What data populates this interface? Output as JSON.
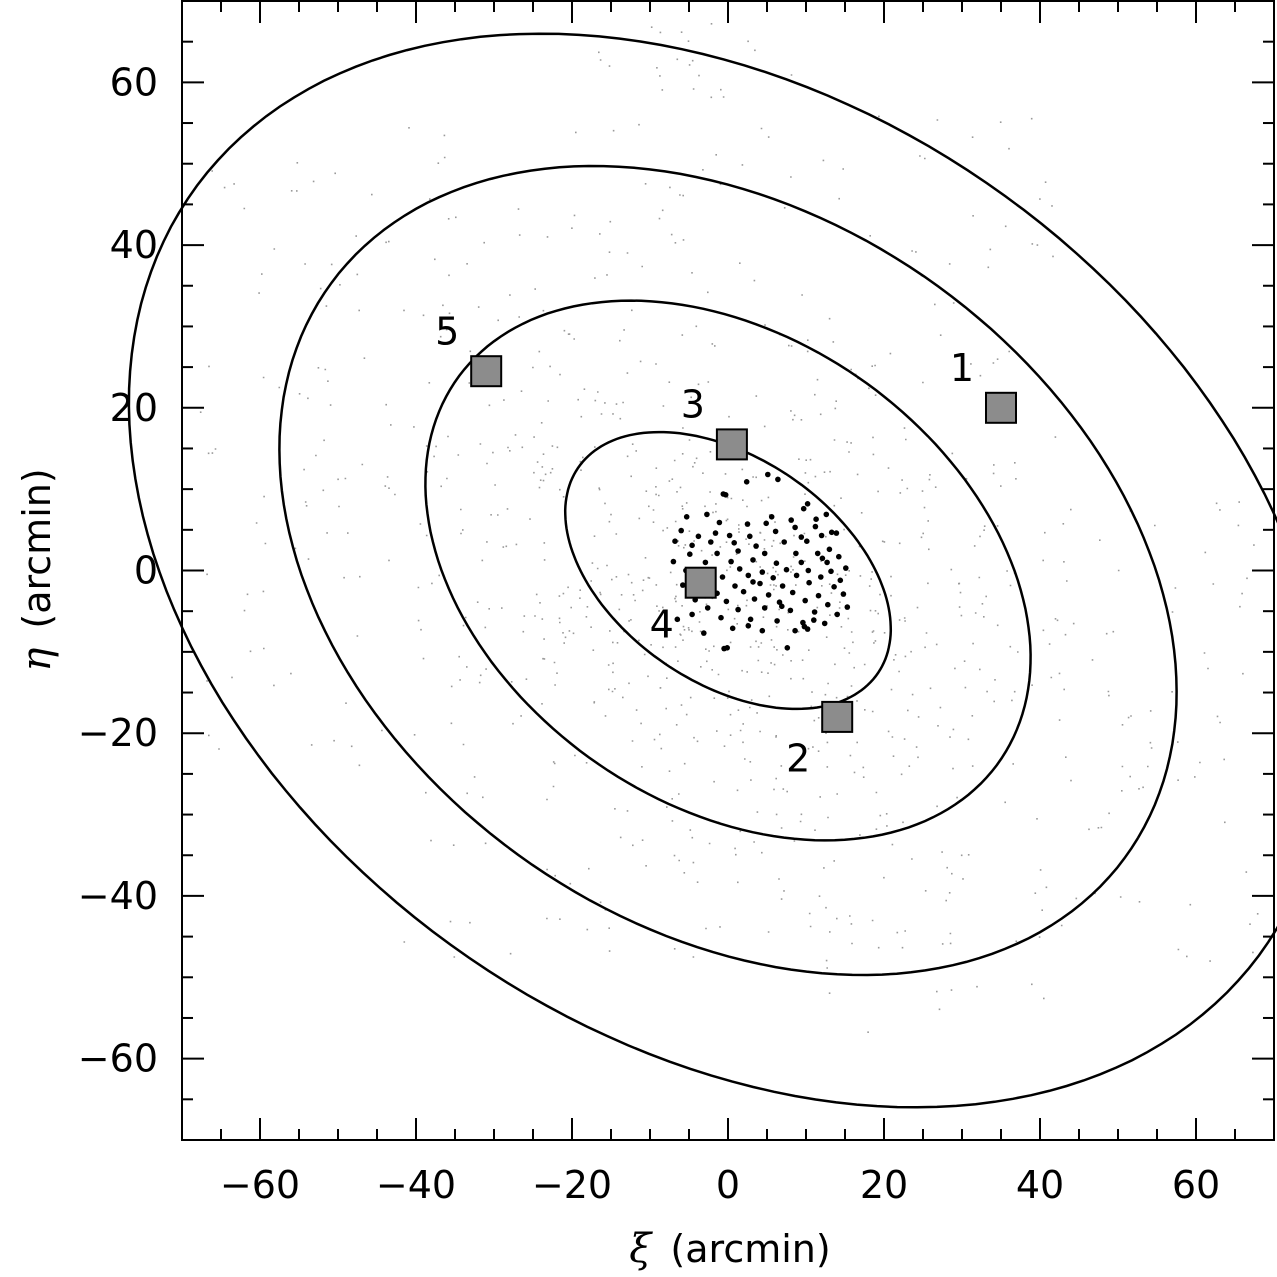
{
  "chart_data": {
    "type": "scatter",
    "title": "",
    "xlabel": {
      "symbol": "ξ",
      "text": "(arcmin)"
    },
    "ylabel": {
      "symbol": "η",
      "text": "(arcmin)"
    },
    "xlim": [
      -70,
      70
    ],
    "ylim": [
      -70,
      70
    ],
    "x_ticks": [
      -60,
      -40,
      -20,
      0,
      20,
      40,
      60
    ],
    "y_ticks": [
      -60,
      -40,
      -20,
      0,
      20,
      40,
      60
    ],
    "x_tick_labels": [
      "−60",
      "−40",
      "−20",
      "0",
      "20",
      "40",
      "60"
    ],
    "y_tick_labels": [
      "−60",
      "−40",
      "−20",
      "0",
      "20",
      "40",
      "60"
    ],
    "minor_tick_step": 5,
    "grid": false,
    "ellipses": [
      {
        "center": [
          0,
          0
        ],
        "semi_major": 23,
        "semi_minor": 14,
        "angle_deg": -32
      },
      {
        "center": [
          0,
          0
        ],
        "semi_major": 42,
        "semi_minor": 29,
        "angle_deg": -32
      },
      {
        "center": [
          0,
          0
        ],
        "semi_major": 62,
        "semi_minor": 44,
        "angle_deg": -32
      },
      {
        "center": [
          0,
          0
        ],
        "semi_major": 83,
        "semi_minor": 58,
        "angle_deg": -32
      }
    ],
    "fields": [
      {
        "label": "1",
        "x": 35,
        "y": 20,
        "label_x": 30,
        "label_y": 25
      },
      {
        "label": "2",
        "x": 14,
        "y": -18,
        "label_x": 9,
        "label_y": -23
      },
      {
        "label": "3",
        "x": 0.5,
        "y": 15.5,
        "label_x": -4.5,
        "label_y": 20.5
      },
      {
        "label": "4",
        "x": -3.5,
        "y": -1.5,
        "label_x": -8.5,
        "label_y": -6.5
      },
      {
        "label": "5",
        "x": -31,
        "y": 24.5,
        "label_x": -36,
        "label_y": 29.5
      }
    ],
    "stars": [
      [
        5.1,
        11.8
      ],
      [
        6.4,
        11.2
      ],
      [
        2.4,
        10.9
      ],
      [
        -0.3,
        9.3
      ],
      [
        10.2,
        8.2
      ],
      [
        12.6,
        6.9
      ],
      [
        9.7,
        7.6
      ],
      [
        8.1,
        6.2
      ],
      [
        11.3,
        6.3
      ],
      [
        13.9,
        4.6
      ],
      [
        -2.7,
        6.9
      ],
      [
        -5.3,
        6.6
      ],
      [
        -1.1,
        5.9
      ],
      [
        2.5,
        5.7
      ],
      [
        4.9,
        5.8
      ],
      [
        8.6,
        5.3
      ],
      [
        11.2,
        5.4
      ],
      [
        -6.0,
        4.9
      ],
      [
        -3.8,
        4.2
      ],
      [
        -1.6,
        4.6
      ],
      [
        0.2,
        4.3
      ],
      [
        2.8,
        4.2
      ],
      [
        6.1,
        4.8
      ],
      [
        9.4,
        4.1
      ],
      [
        12.0,
        4.3
      ],
      [
        -6.8,
        3.6
      ],
      [
        -4.6,
        3.1
      ],
      [
        -2.2,
        3.5
      ],
      [
        0.8,
        3.4
      ],
      [
        3.6,
        3.0
      ],
      [
        7.2,
        3.5
      ],
      [
        10.1,
        3.6
      ],
      [
        13.0,
        2.6
      ],
      [
        -4.9,
        2.0
      ],
      [
        -1.4,
        2.1
      ],
      [
        1.3,
        2.4
      ],
      [
        4.7,
        2.1
      ],
      [
        8.7,
        2.1
      ],
      [
        11.5,
        2.1
      ],
      [
        14.2,
        1.7
      ],
      [
        -7.0,
        1.1
      ],
      [
        -2.9,
        1.0
      ],
      [
        0.4,
        1.1
      ],
      [
        3.2,
        1.3
      ],
      [
        6.2,
        0.9
      ],
      [
        9.4,
        1.0
      ],
      [
        12.7,
        1.0
      ],
      [
        -5.4,
        0.0
      ],
      [
        -1.9,
        -0.1
      ],
      [
        1.5,
        0.2
      ],
      [
        4.4,
        -0.2
      ],
      [
        7.5,
        0.1
      ],
      [
        10.3,
        0.0
      ],
      [
        13.2,
        -0.1
      ],
      [
        15.1,
        0.3
      ],
      [
        -3.9,
        -0.9
      ],
      [
        -0.7,
        -0.8
      ],
      [
        2.6,
        -0.6
      ],
      [
        5.8,
        -0.9
      ],
      [
        8.8,
        -0.6
      ],
      [
        11.9,
        -0.8
      ],
      [
        14.4,
        -1.2
      ],
      [
        -5.8,
        -1.8
      ],
      [
        -2.3,
        -1.7
      ],
      [
        0.9,
        -1.9
      ],
      [
        4.1,
        -1.6
      ],
      [
        7.0,
        -1.9
      ],
      [
        10.4,
        -1.5
      ],
      [
        13.6,
        -2.0
      ],
      [
        -1.4,
        -2.8
      ],
      [
        2.0,
        -2.6
      ],
      [
        5.2,
        -3.0
      ],
      [
        8.3,
        -2.7
      ],
      [
        11.6,
        -3.1
      ],
      [
        14.8,
        -2.9
      ],
      [
        -4.2,
        -3.6
      ],
      [
        -0.2,
        -3.8
      ],
      [
        3.4,
        -3.5
      ],
      [
        6.6,
        -3.9
      ],
      [
        9.9,
        -3.7
      ],
      [
        12.8,
        -4.2
      ],
      [
        15.3,
        -4.5
      ],
      [
        -2.6,
        -4.6
      ],
      [
        1.3,
        -4.8
      ],
      [
        4.7,
        -4.6
      ],
      [
        8.0,
        -4.9
      ],
      [
        11.1,
        -5.1
      ],
      [
        14.0,
        -5.4
      ],
      [
        -0.9,
        -5.8
      ],
      [
        2.9,
        -6.0
      ],
      [
        6.3,
        -6.2
      ],
      [
        9.6,
        -6.4
      ],
      [
        12.4,
        -6.5
      ],
      [
        -3.1,
        -7.7
      ],
      [
        0.6,
        -7.1
      ],
      [
        4.4,
        -7.4
      ],
      [
        8.6,
        -7.4
      ],
      [
        10.2,
        -7.2
      ],
      [
        -0.5,
        -9.6
      ],
      [
        7.6,
        -9.5
      ],
      [
        9.8,
        -6.9
      ],
      [
        11.0,
        -6.1
      ],
      [
        2.6,
        -6.8
      ],
      [
        -6.5,
        -6.0
      ],
      [
        -4.6,
        -5.4
      ],
      [
        12.1,
        1.5
      ],
      [
        5.6,
        6.6
      ],
      [
        13.3,
        4.7
      ],
      [
        -0.6,
        9.4
      ],
      [
        3.2,
        -1.4
      ],
      [
        -0.1,
        -9.5
      ],
      [
        6.9,
        -4.4
      ]
    ]
  }
}
